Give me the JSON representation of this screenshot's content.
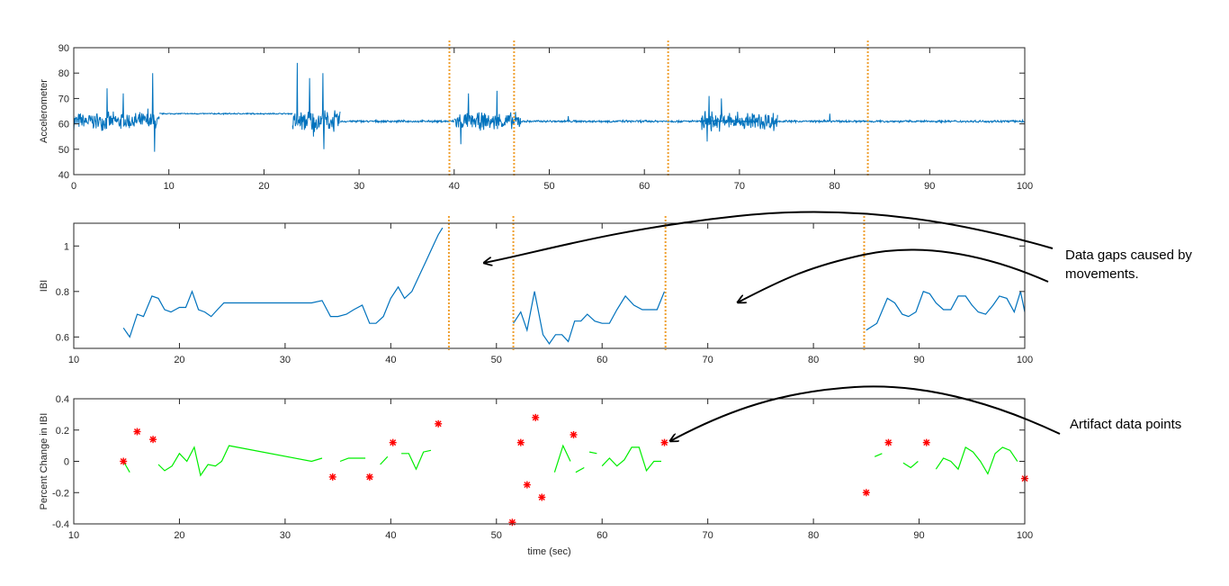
{
  "chart_data": [
    {
      "type": "line",
      "ylabel": "Accelerometer",
      "xlim": [
        0,
        100
      ],
      "ylim": [
        40,
        90
      ],
      "x_ticks": [
        0,
        10,
        20,
        30,
        40,
        50,
        60,
        70,
        80,
        90,
        100
      ],
      "y_ticks": [
        40,
        50,
        60,
        70,
        80,
        90
      ],
      "grid": false,
      "color": "#0072bd",
      "signal_segments": [
        {
          "x_start": 0,
          "x_end": 9,
          "baseline": 61,
          "noise": 4,
          "spikes": [
            [
              3.5,
              74
            ],
            [
              5.2,
              72
            ],
            [
              7.8,
              66
            ],
            [
              8.3,
              80
            ],
            [
              8.5,
              49
            ]
          ]
        },
        {
          "x_start": 9,
          "x_end": 23,
          "baseline": 64,
          "noise": 0.3,
          "spikes": []
        },
        {
          "x_start": 23,
          "x_end": 28,
          "baseline": 61,
          "noise": 5,
          "spikes": [
            [
              23.5,
              84
            ],
            [
              24.8,
              78
            ],
            [
              25.2,
              55
            ],
            [
              26.2,
              80
            ],
            [
              26.3,
              50
            ]
          ]
        },
        {
          "x_start": 28,
          "x_end": 40,
          "baseline": 61,
          "noise": 0.5,
          "spikes": []
        },
        {
          "x_start": 40,
          "x_end": 47,
          "baseline": 61,
          "noise": 4,
          "spikes": [
            [
              41.5,
              72
            ],
            [
              44.5,
              73
            ],
            [
              40.7,
              52
            ]
          ]
        },
        {
          "x_start": 47,
          "x_end": 72,
          "baseline": 61,
          "noise": 0.5,
          "spikes": [
            [
              52,
              63
            ]
          ]
        },
        {
          "x_start": 66,
          "x_end": 74,
          "baseline": 61,
          "noise": 4.5,
          "spikes": [
            [
              66.8,
              71
            ],
            [
              68.1,
              70
            ],
            [
              66.6,
              53
            ]
          ]
        },
        {
          "x_start": 74,
          "x_end": 100,
          "baseline": 61,
          "noise": 0.5,
          "spikes": [
            [
              79.5,
              64
            ]
          ]
        }
      ],
      "movement_markers_x": [
        39.5,
        46.3,
        62.5,
        83.5
      ]
    },
    {
      "type": "line",
      "ylabel": "IBI",
      "xlim": [
        10,
        100
      ],
      "ylim": [
        0.55,
        1.1
      ],
      "x_ticks": [
        10,
        20,
        30,
        40,
        50,
        60,
        70,
        80,
        90,
        100
      ],
      "y_ticks": [
        0.6,
        0.8,
        1
      ],
      "y_tick_labels": [
        "0.6",
        "0.8",
        "1"
      ],
      "grid": false,
      "color": "#0072bd",
      "series": [
        {
          "x": [
            14.7,
            15.3,
            16.0,
            16.6,
            17.4,
            18.0,
            18.6,
            19.2,
            20.0,
            20.6,
            21.2,
            21.8,
            22.4,
            23.0,
            23.6,
            24.2,
            25.0,
            32.5,
            33.5,
            34.3,
            35.0,
            35.8,
            36.5,
            37.3,
            38.0,
            38.6,
            39.3,
            40.0,
            40.7,
            41.3,
            42.0,
            42.7,
            43.3,
            44.0,
            44.5,
            44.9
          ],
          "y": [
            0.64,
            0.6,
            0.7,
            0.69,
            0.78,
            0.77,
            0.72,
            0.71,
            0.73,
            0.73,
            0.8,
            0.72,
            0.71,
            0.69,
            0.72,
            0.75,
            0.75,
            0.75,
            0.76,
            0.69,
            0.69,
            0.7,
            0.72,
            0.74,
            0.66,
            0.66,
            0.69,
            0.77,
            0.82,
            0.77,
            0.8,
            0.87,
            0.93,
            1.0,
            1.05,
            1.08
          ]
        },
        {
          "x": [
            51.6,
            52.3,
            52.9,
            53.6,
            54.4,
            55.0,
            55.6,
            56.2,
            56.8,
            57.4,
            58.0,
            58.6,
            59.3,
            60.0,
            60.7,
            61.4,
            62.2,
            63.0,
            63.8,
            64.5,
            65.2,
            65.9
          ],
          "y": [
            0.66,
            0.71,
            0.63,
            0.8,
            0.61,
            0.57,
            0.61,
            0.61,
            0.58,
            0.67,
            0.67,
            0.7,
            0.67,
            0.66,
            0.66,
            0.72,
            0.78,
            0.74,
            0.72,
            0.72,
            0.72,
            0.8
          ]
        },
        {
          "x": [
            85.0,
            86.0,
            87.0,
            87.7,
            88.4,
            89.0,
            89.7,
            90.4,
            91.0,
            91.6,
            92.3,
            93.0,
            93.7,
            94.4,
            95.0,
            95.6,
            96.3,
            97.0,
            97.6,
            98.3,
            99.0,
            99.6,
            100.0
          ],
          "y": [
            0.63,
            0.66,
            0.77,
            0.75,
            0.7,
            0.69,
            0.71,
            0.8,
            0.79,
            0.75,
            0.72,
            0.72,
            0.78,
            0.78,
            0.74,
            0.71,
            0.7,
            0.74,
            0.78,
            0.77,
            0.71,
            0.8,
            0.71
          ]
        }
      ],
      "movement_markers_x": [
        45.5,
        51.6,
        66.0,
        84.8
      ]
    },
    {
      "type": "scatter",
      "xlabel": "time (sec)",
      "ylabel": "Percent Change in IBI",
      "xlim": [
        10,
        100
      ],
      "ylim": [
        -0.4,
        0.4
      ],
      "x_ticks": [
        10,
        20,
        30,
        40,
        50,
        60,
        70,
        80,
        90,
        100
      ],
      "y_ticks": [
        -0.4,
        -0.2,
        0,
        0.2,
        0.4
      ],
      "y_tick_labels": [
        "-0.4",
        "-0.2",
        "0",
        "0.2",
        "0.4"
      ],
      "grid": false,
      "line_color": "#00ee00",
      "marker_color": "#ff0000",
      "series": [
        {
          "x": [
            14.7,
            15.3
          ],
          "y": [
            0.0,
            -0.07
          ]
        },
        {
          "x": [
            18.0,
            18.6,
            19.3,
            20.0,
            20.7,
            21.4,
            22.0,
            22.7,
            23.4,
            24.0,
            24.7,
            32.5,
            33.5
          ],
          "y": [
            -0.02,
            -0.06,
            -0.03,
            0.05,
            0.0,
            0.09,
            -0.09,
            -0.02,
            -0.03,
            0.0,
            0.1,
            0.0,
            0.02
          ]
        },
        {
          "x": [
            35.2,
            36.0,
            36.8,
            37.6
          ],
          "y": [
            0.0,
            0.02,
            0.02,
            0.02
          ]
        },
        {
          "x": [
            39.0,
            39.7
          ],
          "y": [
            -0.02,
            0.03
          ]
        },
        {
          "x": [
            41.0,
            41.7,
            42.4,
            43.1,
            43.8
          ],
          "y": [
            0.05,
            0.05,
            -0.05,
            0.06,
            0.07
          ]
        },
        {
          "x": [
            57.5,
            58.3
          ],
          "y": [
            -0.07,
            -0.04
          ]
        },
        {
          "x": [
            58.8,
            59.5
          ],
          "y": [
            0.06,
            0.05
          ]
        },
        {
          "x": [
            60.0,
            60.7,
            61.4,
            62.1,
            62.8,
            63.5,
            64.2,
            64.9,
            65.6
          ],
          "y": [
            -0.03,
            0.02,
            -0.03,
            0.01,
            0.09,
            0.09,
            -0.06,
            0.0,
            0.0
          ]
        },
        {
          "x": [
            55.5,
            56.3,
            57.0
          ],
          "y": [
            -0.07,
            0.1,
            0.0
          ]
        },
        {
          "x": [
            85.8,
            86.5
          ],
          "y": [
            0.03,
            0.05
          ]
        },
        {
          "x": [
            88.5,
            89.2,
            89.9
          ],
          "y": [
            -0.01,
            -0.04,
            0.0
          ]
        },
        {
          "x": [
            90.5
          ],
          "y": [
            0.06
          ]
        },
        {
          "x": [
            91.6,
            92.3,
            93.0,
            93.7,
            94.4,
            95.1,
            95.8,
            96.5,
            97.2,
            97.9,
            98.6,
            99.3
          ],
          "y": [
            -0.05,
            0.02,
            0.0,
            -0.05,
            0.09,
            0.06,
            0.0,
            -0.08,
            0.05,
            0.09,
            0.07,
            0.0
          ]
        }
      ],
      "markers": {
        "x": [
          14.7,
          16.0,
          17.5,
          34.5,
          38.0,
          40.2,
          44.5,
          51.5,
          52.3,
          52.9,
          53.7,
          54.3,
          57.3,
          65.9,
          85.0,
          87.1,
          90.7,
          100.0
        ],
        "y": [
          0.0,
          0.19,
          0.14,
          -0.1,
          -0.1,
          0.12,
          0.24,
          -0.39,
          0.12,
          -0.15,
          0.28,
          -0.23,
          0.17,
          0.12,
          -0.2,
          0.12,
          0.12,
          -0.11
        ]
      }
    }
  ],
  "annotations": {
    "gaps_text_line1": "Data gaps caused by",
    "gaps_text_line2": "movements.",
    "artifact_text": "Artifact data points"
  },
  "colors": {
    "accel_line": "#0072bd",
    "ibi_line": "#0072bd",
    "pct_line": "#00ee00",
    "artifact_marker": "#ff0000",
    "movement_marker": "#f0a030",
    "arrow": "#000000"
  }
}
